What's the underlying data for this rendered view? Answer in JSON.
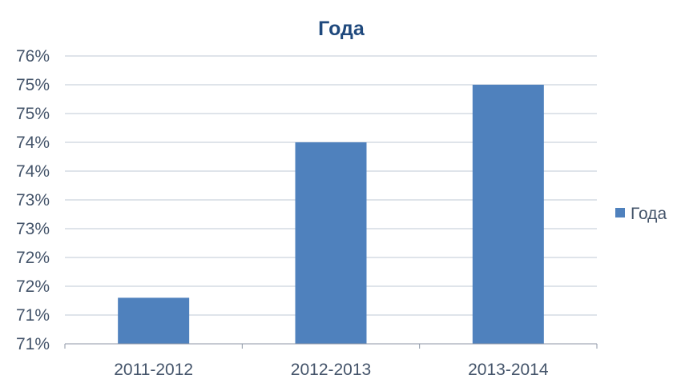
{
  "chart_data": {
    "type": "bar",
    "title": "Года",
    "categories": [
      "2011-2012",
      "2012-2013",
      "2013-2014"
    ],
    "series": [
      {
        "name": "Года",
        "values": [
          71.8,
          74.5,
          75.5
        ]
      }
    ],
    "ylim": [
      71,
      76
    ],
    "y_tick_values": [
      71,
      71.5,
      72,
      72.5,
      73,
      73.5,
      74,
      74.5,
      75,
      75.5,
      76
    ],
    "y_tick_labels": [
      "71%",
      "71%",
      "72%",
      "72%",
      "73%",
      "73%",
      "74%",
      "74%",
      "75%",
      "75%",
      "76%"
    ],
    "grid": true,
    "legend_position": "right",
    "colors": {
      "bar": "#4F81BD",
      "text": "#1F497D",
      "axis_text": "#44546A",
      "grid": "#BFC8D6"
    }
  }
}
